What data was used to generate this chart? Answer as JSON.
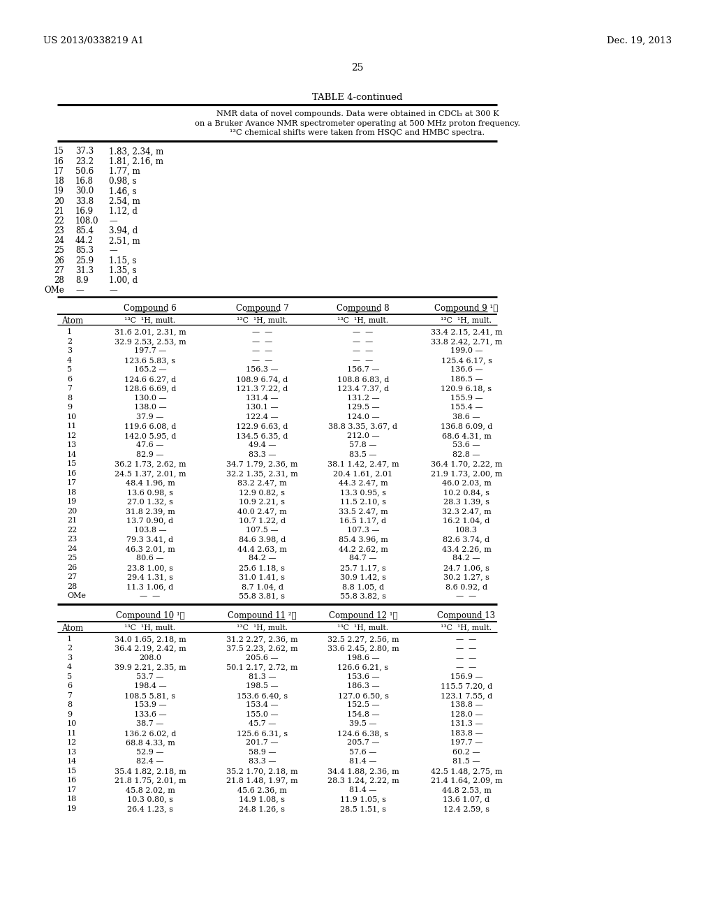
{
  "page_number": "25",
  "left_header": "US 2013/0338219 A1",
  "right_header": "Dec. 19, 2013",
  "table_title": "TABLE 4-continued",
  "table_note_lines": [
    "NMR data of novel compounds. Data were obtained in CDCl₃ at 300 K",
    "on a Bruker Avance NMR spectrometer operating at 500 MHz proton frequency.",
    "¹³C chemical shifts were taken from HSQC and HMBC spectra."
  ],
  "top_section": [
    [
      "15",
      "37.3",
      "1.83, 2.34, m"
    ],
    [
      "16",
      "23.2",
      "1.81, 2.16, m"
    ],
    [
      "17",
      "50.6",
      "1.77, m"
    ],
    [
      "18",
      "16.8",
      "0.98, s"
    ],
    [
      "19",
      "30.0",
      "1.46, s"
    ],
    [
      "20",
      "33.8",
      "2.54, m"
    ],
    [
      "21",
      "16.9",
      "1.12, d"
    ],
    [
      "22",
      "108.0",
      "—"
    ],
    [
      "23",
      "85.4",
      "3.94, d"
    ],
    [
      "24",
      "44.2",
      "2.51, m"
    ],
    [
      "25",
      "85.3",
      "—"
    ],
    [
      "26",
      "25.9",
      "1.15, s"
    ],
    [
      "27",
      "31.3",
      "1.35, s"
    ],
    [
      "28",
      "8.9",
      "1.00, d"
    ],
    [
      "OMe",
      "—",
      "—"
    ]
  ],
  "section2_compound_headers": [
    "Compound 6",
    "Compound 7",
    "Compound 8",
    "Compound 9 ¹⧏"
  ],
  "section2_col_header": "¹³C  ¹H, mult.",
  "section2_data": [
    [
      "1",
      "31.6 2.01, 2.31, m",
      "—  —",
      "—  —",
      "33.4 2.15, 2.41, m"
    ],
    [
      "2",
      "32.9 2.53, 2.53, m",
      "—  —",
      "—  —",
      "33.8 2.42, 2.71, m"
    ],
    [
      "3",
      "197.7 —",
      "—  —",
      "—  —",
      "199.0 —"
    ],
    [
      "4",
      "123.6 5.83, s",
      "—  —",
      "—  —",
      "125.4 6.17, s"
    ],
    [
      "5",
      "165.2 —",
      "156.3 —",
      "156.7 —",
      "136.6 —"
    ],
    [
      "6",
      "124.6 6.27, d",
      "108.9 6.74, d",
      "108.8 6.83, d",
      "186.5 —"
    ],
    [
      "7",
      "128.6 6.69, d",
      "121.3 7.22, d",
      "123.4 7.37, d",
      "120.9 6.18, s"
    ],
    [
      "8",
      "130.0 —",
      "131.4 —",
      "131.2 —",
      "155.9 —"
    ],
    [
      "9",
      "138.0 —",
      "130.1 —",
      "129.5 —",
      "155.4 —"
    ],
    [
      "10",
      "37.9 —",
      "122.4 —",
      "124.0 —",
      "38.6 —"
    ],
    [
      "11",
      "119.6 6.08, d",
      "122.9 6.63, d",
      "38.8 3.35, 3.67, d",
      "136.8 6.09, d"
    ],
    [
      "12",
      "142.0 5.95, d",
      "134.5 6.35, d",
      "212.0 —",
      "68.6 4.31, m"
    ],
    [
      "13",
      "47.6 —",
      "49.4 —",
      "57.8 —",
      "53.6 —"
    ],
    [
      "14",
      "82.9 —",
      "83.3 —",
      "83.5 —",
      "82.8 —"
    ],
    [
      "15",
      "36.2 1.73, 2.62, m",
      "34.7 1.79, 2.36, m",
      "38.1 1.42, 2.47, m",
      "36.4 1.70, 2.22, m"
    ],
    [
      "16",
      "24.5 1.37, 2.01, m",
      "32.2 1.35, 2.31, m",
      "20.4 1.61, 2.01",
      "21.9 1.73, 2.00, m"
    ],
    [
      "17",
      "48.4 1.96, m",
      "83.2 2.47, m",
      "44.3 2.47, m",
      "46.0 2.03, m"
    ],
    [
      "18",
      "13.6 0.98, s",
      "12.9 0.82, s",
      "13.3 0.95, s",
      "10.2 0.84, s"
    ],
    [
      "19",
      "27.0 1.32, s",
      "10.9 2.21, s",
      "11.5 2.10, s",
      "28.3 1.39, s"
    ],
    [
      "20",
      "31.8 2.39, m",
      "40.0 2.47, m",
      "33.5 2.47, m",
      "32.3 2.47, m"
    ],
    [
      "21",
      "13.7 0.90, d",
      "10.7 1.22, d",
      "16.5 1.17, d",
      "16.2 1.04, d"
    ],
    [
      "22",
      "103.8 —",
      "107.5 —",
      "107.3 —",
      "108.3"
    ],
    [
      "23",
      "79.3 3.41, d",
      "84.6 3.98, d",
      "85.4 3.96, m",
      "82.6 3.74, d"
    ],
    [
      "24",
      "46.3 2.01, m",
      "44.4 2.63, m",
      "44.2 2.62, m",
      "43.4 2.26, m"
    ],
    [
      "25",
      "80.6 —",
      "84.2 —",
      "84.7 —",
      "84.2 —"
    ],
    [
      "26",
      "23.8 1.00, s",
      "25.6 1.18, s",
      "25.7 1.17, s",
      "24.7 1.06, s"
    ],
    [
      "27",
      "29.4 1.31, s",
      "31.0 1.41, s",
      "30.9 1.42, s",
      "30.2 1.27, s"
    ],
    [
      "28",
      "11.3 1.06, d",
      "8.7 1.04, d",
      "8.8 1.05, d",
      "8.6 0.92, d"
    ],
    [
      "OMe",
      "—  —",
      "55.8 3.81, s",
      "55.8 3.82, s",
      "—  —"
    ]
  ],
  "section3_compound_headers": [
    "Compound 10 ¹⧏",
    "Compound 11 ²⧏",
    "Compound 12 ¹⧏",
    "Compound 13"
  ],
  "section3_col_header": "¹³C  ¹H, mult.",
  "section3_data": [
    [
      "1",
      "34.0 1.65, 2.18, m",
      "31.2 2.27, 2.36, m",
      "32.5 2.27, 2.56, m",
      "—  —"
    ],
    [
      "2",
      "36.4 2.19, 2.42, m",
      "37.5 2.23, 2.62, m",
      "33.6 2.45, 2.80, m",
      "—  —"
    ],
    [
      "3",
      "208.0",
      "205.6 —",
      "198.6 —",
      "—  —"
    ],
    [
      "4",
      "39.9 2.21, 2.35, m",
      "50.1 2.17, 2.72, m",
      "126.6 6.21, s",
      "—  —"
    ],
    [
      "5",
      "53.7 —",
      "81.3 —",
      "153.6 —",
      "156.9 —"
    ],
    [
      "6",
      "198.4 —",
      "198.5 —",
      "186.3 —",
      "115.5 7.20, d"
    ],
    [
      "7",
      "108.5 5.81, s",
      "153.6 6.40, s",
      "127.0 6.50, s",
      "123.1 7.55, d"
    ],
    [
      "8",
      "153.9 —",
      "153.4 —",
      "152.5 —",
      "138.8 —"
    ],
    [
      "9",
      "133.6 —",
      "155.0 —",
      "154.8 —",
      "128.0 —"
    ],
    [
      "10",
      "38.7 —",
      "45.7 —",
      "39.5 —",
      "131.3 —"
    ],
    [
      "11",
      "136.2 6.02, d",
      "125.6 6.31, s",
      "124.6 6.38, s",
      "183.8 —"
    ],
    [
      "12",
      "68.8 4.33, m",
      "201.7 —",
      "205.7 —",
      "197.7 —"
    ],
    [
      "13",
      "52.9 —",
      "58.9 —",
      "57.6 —",
      "60.2 —"
    ],
    [
      "14",
      "82.4 —",
      "83.3 —",
      "81.4 —",
      "81.5 —"
    ],
    [
      "15",
      "35.4 1.82, 2.18, m",
      "35.2 1.70, 2.18, m",
      "34.4 1.88, 2.36, m",
      "42.5 1.48, 2.75, m"
    ],
    [
      "16",
      "21.8 1.75, 2.01, m",
      "21.8 1.48, 1.97, m",
      "28.3 1.24, 2.22, m",
      "21.4 1.64, 2.09, m"
    ],
    [
      "17",
      "45.8 2.02, m",
      "45.6 2.36, m",
      "81.4 —",
      "44.8 2.53, m"
    ],
    [
      "18",
      "10.3 0.80, s",
      "14.9 1.08, s",
      "11.9 1.05, s",
      "13.6 1.07, d"
    ],
    [
      "19",
      "26.4 1.23, s",
      "24.8 1.26, s",
      "28.5 1.51, s",
      "12.4 2.59, s"
    ]
  ]
}
